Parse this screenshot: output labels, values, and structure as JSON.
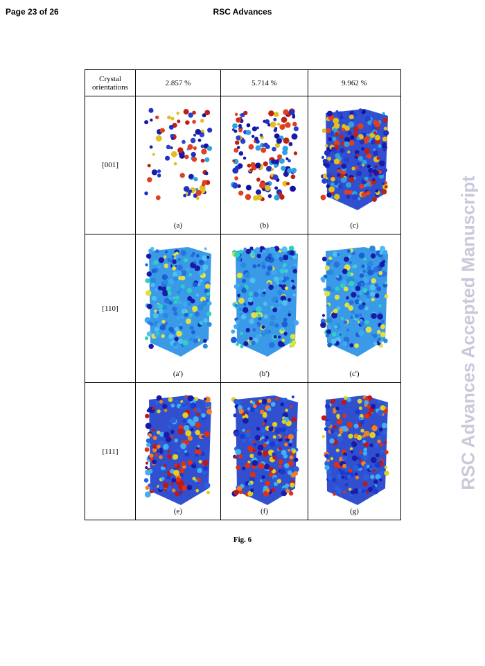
{
  "header": {
    "page": "Page 23 of 26",
    "journal": "RSC Advances"
  },
  "watermark": "RSC Advances Accepted Manuscript",
  "table": {
    "header": [
      "Crystal orientations",
      "2.857 %",
      "5.714 %",
      "9.962 %"
    ],
    "rows": [
      {
        "label": "[001]",
        "captions": [
          "(a)",
          "(b)",
          "(c)"
        ]
      },
      {
        "label": "[110]",
        "captions": [
          "(a')",
          "(b')",
          "(c')"
        ]
      },
      {
        "label": "[111]",
        "captions": [
          "(e)",
          "(f)",
          "(g)"
        ]
      }
    ]
  },
  "caption": "Fig. 6"
}
